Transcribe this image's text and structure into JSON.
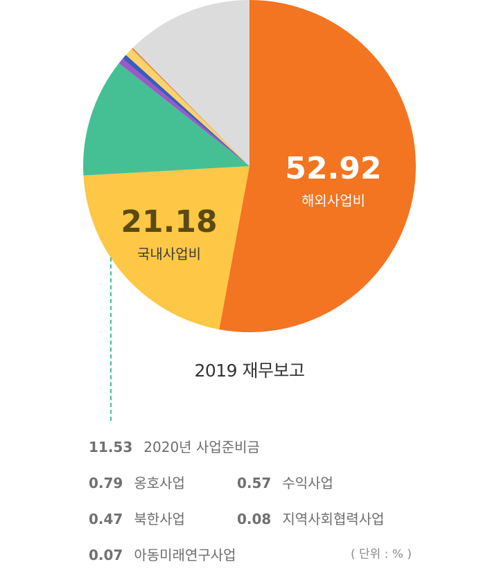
{
  "chart_data": {
    "type": "pie",
    "subtitle": "2019 재무보고",
    "slices": [
      {
        "name": "해외사업비",
        "value": 52.92,
        "color": "#f37421",
        "label_shown": true,
        "label_color": "#ffffff"
      },
      {
        "name": "국내사업비",
        "value": 21.18,
        "color": "#fec745",
        "label_shown": true,
        "label_color": "#5a4a12"
      },
      {
        "name": "2020년 사업준비금",
        "value": 11.53,
        "color": "#45c095",
        "label_shown": false
      },
      {
        "name": "수익사업",
        "value": 0.57,
        "color": "#9b59c8",
        "label_shown": false
      },
      {
        "name": "북한사업",
        "value": 0.47,
        "color": "#3a5dbb",
        "label_shown": false
      },
      {
        "name": "옹호사업",
        "value": 0.79,
        "color": "#fdd26b",
        "label_shown": false
      },
      {
        "name": "지역사회협력사업",
        "value": 0.08,
        "color": "#f09a3a",
        "label_shown": false
      },
      {
        "name": "아동미래연구사업",
        "value": 0.07,
        "color": "#c7732f",
        "label_shown": false
      },
      {
        "name": "",
        "value": 12.39,
        "color": "#dcdcdc",
        "label_shown": false
      }
    ],
    "unit": "( 단위 : % )"
  },
  "labels": {
    "overseas_value": "52.92",
    "overseas_name": "해외사업비",
    "domestic_value": "21.18",
    "domestic_name": "국내사업비"
  },
  "legend": {
    "row1": {
      "c1": {
        "value": "11.53",
        "name": "2020년 사업준비금"
      }
    },
    "row2": {
      "c1": {
        "value": "0.79",
        "name": "옹호사업"
      },
      "c2": {
        "value": "0.57",
        "name": "수익사업"
      }
    },
    "row3": {
      "c1": {
        "value": "0.47",
        "name": "북한사업"
      },
      "c2": {
        "value": "0.08",
        "name": "지역사회협력사업"
      }
    },
    "row4": {
      "c1": {
        "value": "0.07",
        "name": "아동미래연구사업"
      }
    }
  }
}
